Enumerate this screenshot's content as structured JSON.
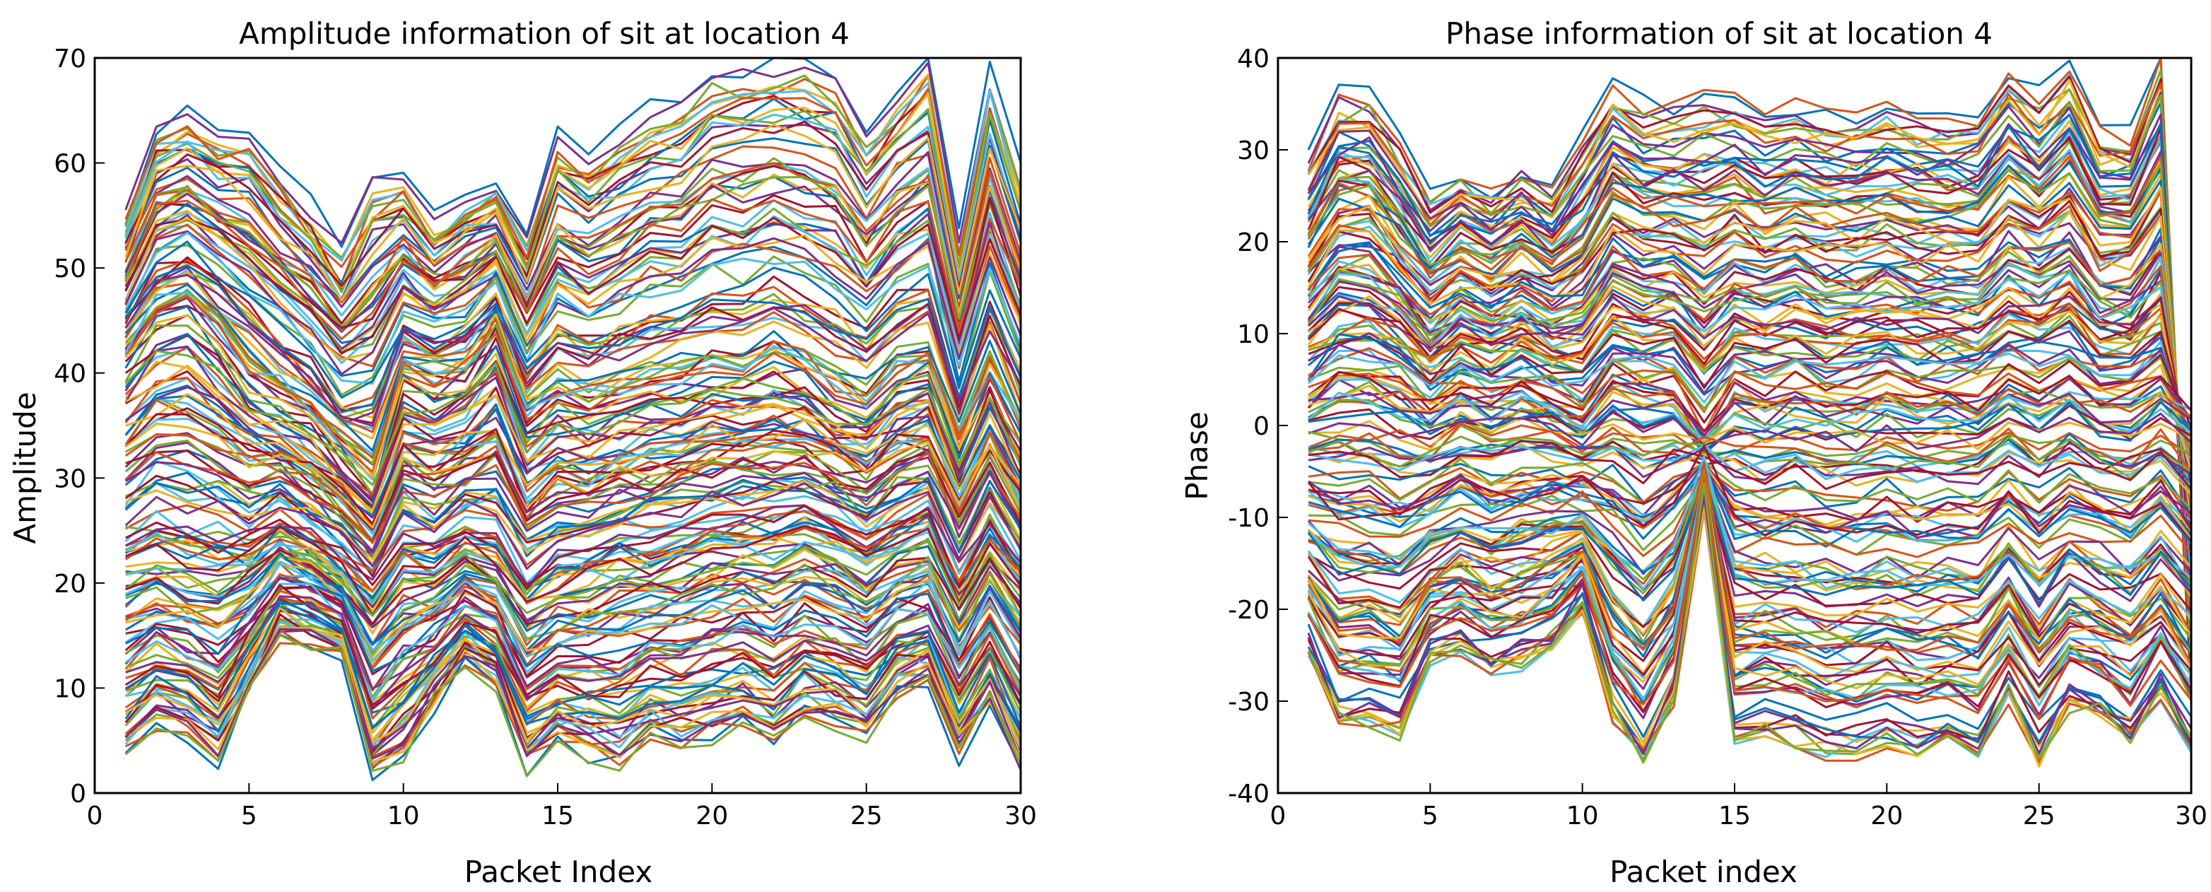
{
  "chart_data": [
    {
      "type": "line",
      "title": "Amplitude information of sit at location 4",
      "xlabel": "Packet Index",
      "ylabel": "Amplitude",
      "xlim": [
        0,
        30
      ],
      "ylim": [
        0,
        70
      ],
      "xticks": [
        0,
        5,
        10,
        15,
        20,
        25,
        30
      ],
      "yticks": [
        0,
        10,
        20,
        30,
        40,
        50,
        60,
        70
      ],
      "grid": false,
      "legend": "none",
      "x": [
        1,
        2,
        3,
        4,
        5,
        6,
        7,
        8,
        9,
        10,
        11,
        12,
        13,
        14,
        15,
        16,
        17,
        18,
        19,
        20,
        21,
        22,
        23,
        24,
        25,
        26,
        27,
        28,
        29,
        30
      ],
      "series_count": 180,
      "colors": [
        "#0072BD",
        "#D95319",
        "#EDB120",
        "#7E2F8E",
        "#77AC30",
        "#4DBEEE",
        "#A2142F"
      ],
      "series_examples": [
        {
          "values": [
            54,
            62,
            64,
            62,
            62,
            58,
            55,
            51,
            58,
            58,
            54,
            56,
            57,
            52,
            62,
            60,
            62,
            64,
            65,
            68,
            68,
            69,
            69,
            68,
            62,
            66,
            69,
            52,
            68,
            58
          ]
        },
        {
          "values": [
            42,
            46,
            47,
            44,
            40,
            38,
            36,
            33,
            30,
            40,
            39,
            40,
            44,
            36,
            38,
            37,
            38,
            39,
            39,
            40,
            40,
            41,
            40,
            38,
            37,
            40,
            41,
            33,
            40,
            34
          ]
        },
        {
          "values": [
            22,
            23,
            22,
            22,
            22,
            24,
            23,
            21,
            18,
            22,
            21,
            23,
            22,
            18,
            20,
            21,
            22,
            22,
            23,
            24,
            24,
            24,
            25,
            24,
            22,
            24,
            25,
            19,
            24,
            20
          ]
        },
        {
          "values": [
            3,
            6,
            5,
            2,
            9,
            15,
            14,
            13,
            1,
            3,
            8,
            12,
            10,
            2,
            4,
            3,
            2,
            5,
            4,
            5,
            6,
            4,
            7,
            6,
            5,
            9,
            10,
            3,
            8,
            1
          ]
        }
      ]
    },
    {
      "type": "line",
      "title": "Phase information of sit at location 4",
      "xlabel": "Packet index",
      "ylabel": "Phase",
      "xlim": [
        0,
        30
      ],
      "ylim": [
        -40,
        40
      ],
      "xticks": [
        0,
        5,
        10,
        15,
        20,
        25,
        30
      ],
      "yticks": [
        -40,
        -30,
        -20,
        -10,
        0,
        10,
        20,
        30,
        40
      ],
      "grid": false,
      "legend": "none",
      "x": [
        1,
        2,
        3,
        4,
        5,
        6,
        7,
        8,
        9,
        10,
        11,
        12,
        13,
        14,
        15,
        16,
        17,
        18,
        19,
        20,
        21,
        22,
        23,
        24,
        25,
        26,
        27,
        28,
        29,
        30
      ],
      "series_count": 180,
      "colors": [
        "#0072BD",
        "#D95319",
        "#EDB120",
        "#7E2F8E",
        "#77AC30",
        "#4DBEEE",
        "#A2142F"
      ],
      "series_examples": [
        {
          "values": [
            28,
            35,
            35,
            30,
            24,
            27,
            25,
            27,
            25,
            30,
            36,
            34,
            34,
            35,
            35,
            33,
            34,
            33,
            33,
            34,
            33,
            33,
            33,
            38,
            35,
            39,
            31,
            31,
            39,
            -30
          ]
        },
        {
          "values": [
            2,
            4,
            4,
            3,
            1,
            3,
            2,
            3,
            2,
            0,
            4,
            3,
            3,
            -2,
            3,
            2,
            3,
            2,
            2,
            3,
            2,
            2,
            2,
            4,
            3,
            4,
            2,
            2,
            4,
            1
          ]
        },
        {
          "values": [
            -25,
            -33,
            -33,
            -34,
            -26,
            -25,
            -27,
            -26,
            -24,
            -20,
            -32,
            -37,
            -30,
            -8,
            -35,
            -34,
            -35,
            -36,
            -36,
            -35,
            -36,
            -35,
            -36,
            -30,
            -37,
            -31,
            -32,
            -35,
            -30,
            -36
          ]
        }
      ]
    }
  ]
}
